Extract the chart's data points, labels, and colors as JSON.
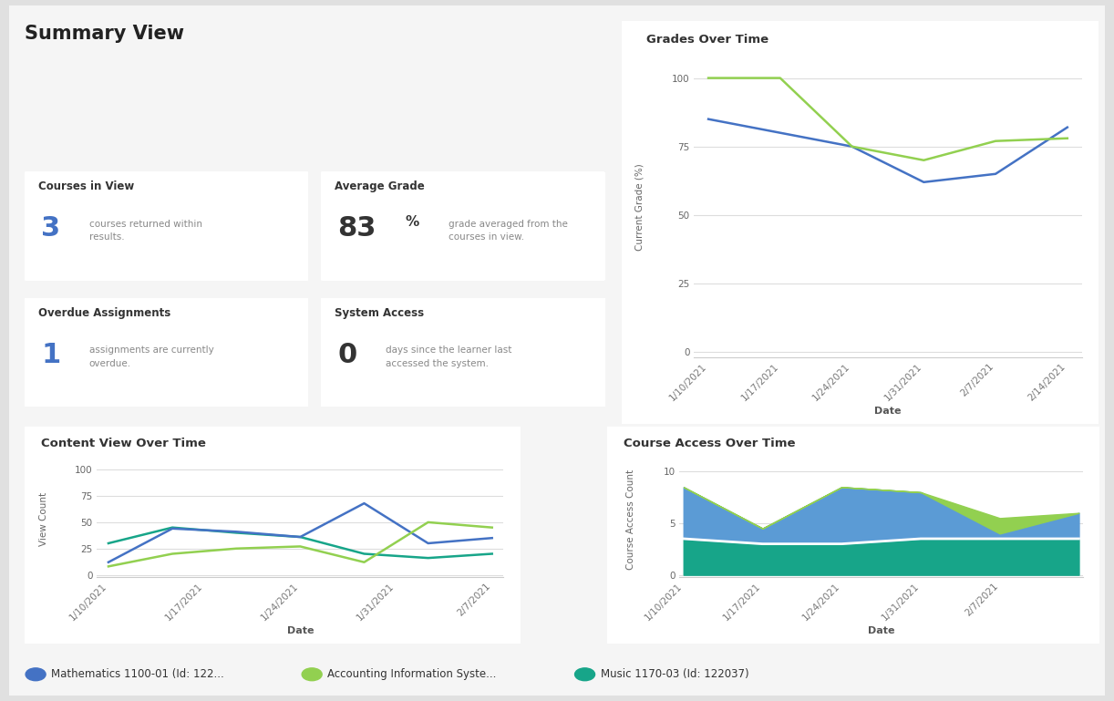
{
  "title": "Summary View",
  "bg_color": "#e0e0e0",
  "card_color": "#ffffff",
  "outer_card_color": "#f5f5f5",
  "courses_in_view_title": "Courses in View",
  "courses_in_view_num": "3",
  "courses_in_view_text": "courses returned within\nresults.",
  "avg_grade_title": "Average Grade",
  "avg_grade_num": "83",
  "avg_grade_unit": "%",
  "avg_grade_text": "grade averaged from the\ncourses in view.",
  "overdue_title": "Overdue Assignments",
  "overdue_num": "1",
  "overdue_text": "assignments are currently\noverdue.",
  "system_title": "System Access",
  "system_num": "0",
  "system_text": "days since the learner last\naccessed the system.",
  "grades_title": "Grades Over Time",
  "grades_ylabel": "Current Grade (%)",
  "grades_xlabel": "Date",
  "grades_xticks": [
    "1/10/2021",
    "1/17/2021",
    "1/24/2021",
    "1/31/2021",
    "2/7/2021",
    "2/14/2021"
  ],
  "grades_yticks": [
    0,
    25,
    50,
    75,
    100
  ],
  "grades_ylim": [
    -2,
    108
  ],
  "grades_math": [
    85,
    80,
    75,
    62,
    65,
    82
  ],
  "grades_acct": [
    100,
    100,
    75,
    70,
    77,
    78
  ],
  "grades_highlight": "#E8820C",
  "color_math": "#4472C4",
  "color_acct": "#92D050",
  "color_music": "#17A589",
  "content_title": "Content View Over Time",
  "content_ylabel": "View Count",
  "content_xlabel": "Date",
  "content_xticks": [
    "1/10/2021",
    "1/17/2021",
    "1/24/2021",
    "1/31/2021",
    "2/7/2021"
  ],
  "content_yticks": [
    0,
    25,
    50,
    75,
    100
  ],
  "content_ylim": [
    -2,
    108
  ],
  "content_math": [
    12,
    44,
    41,
    36,
    68,
    30,
    35
  ],
  "content_acct": [
    8,
    20,
    25,
    27,
    12,
    50,
    45
  ],
  "content_music": [
    30,
    45,
    40,
    36,
    20,
    16,
    20
  ],
  "access_title": "Course Access Over Time",
  "access_ylabel": "Course Access Count",
  "access_xlabel": "Date",
  "access_xticks": [
    "1/10/2021",
    "1/17/2021",
    "1/24/2021",
    "1/31/2021",
    "2/7/2021"
  ],
  "access_yticks": [
    0,
    5,
    10
  ],
  "access_ylim": [
    -0.2,
    11
  ],
  "access_music": [
    3.5,
    3.0,
    3.0,
    3.5,
    3.5,
    3.5
  ],
  "access_math": [
    5.0,
    1.5,
    5.5,
    4.5,
    0.5,
    2.5
  ],
  "access_acct": [
    0.0,
    0.0,
    0.0,
    0.0,
    1.5,
    0.0
  ],
  "legend_labels": [
    "Mathematics 1100-01 (Id: 122...",
    "Accounting Information Syste...",
    "Music 1170-03 (Id: 122037)"
  ],
  "legend_colors": [
    "#4472C4",
    "#92D050",
    "#17A589"
  ]
}
